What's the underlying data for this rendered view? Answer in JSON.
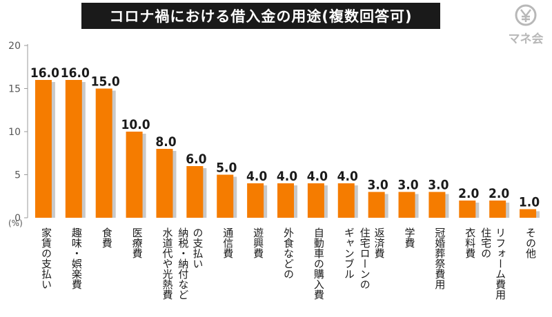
{
  "brand": {
    "name": "マネ会",
    "icon": "yen-coin-icon"
  },
  "colors": {
    "bar": "#f57c00",
    "shadow": "#c9c9c9",
    "axis": "#999999",
    "text": "#1a1a1a"
  },
  "chart_data": {
    "type": "bar",
    "title": "コロナ禍における借入金の用途(複数回答可)",
    "unit_label": "(%)",
    "ylim": [
      0,
      20
    ],
    "yticks": [
      0,
      5,
      10,
      15,
      20
    ],
    "grid": false,
    "categories": [
      "家賃の支払い",
      "趣味・娯楽費",
      "食費",
      "医療費",
      "水道代や光熱費",
      "納税・納付などの支払い",
      "通信費",
      "遊興費",
      "外食などの",
      "自動車の購入費",
      "ギャンブル",
      "住宅ローンの返済費",
      "学費",
      "冠婚葬祭費用",
      "衣料費",
      "住宅のリフォーム費用",
      "その他"
    ],
    "category_lines": [
      [
        "家賃の支払い"
      ],
      [
        "趣味・娯楽費"
      ],
      [
        "食費"
      ],
      [
        "医療費"
      ],
      [
        "水道代や光熱費"
      ],
      [
        "の支払い",
        "納税・納付など"
      ],
      [
        "通信費"
      ],
      [
        "遊興費"
      ],
      [
        "外食などの"
      ],
      [
        "自動車の購入費"
      ],
      [
        "ギャンブル"
      ],
      [
        "返済費",
        "住宅ローンの"
      ],
      [
        "学費"
      ],
      [
        "冠婚葬祭費用"
      ],
      [
        "衣料費"
      ],
      [
        "リフォーム費用",
        "住宅の"
      ],
      [
        "その他"
      ]
    ],
    "values": [
      16.0,
      16.0,
      15.0,
      10.0,
      8.0,
      6.0,
      5.0,
      4.0,
      4.0,
      4.0,
      4.0,
      3.0,
      3.0,
      3.0,
      2.0,
      2.0,
      1.0
    ],
    "value_labels": [
      "16.0",
      "16.0",
      "15.0",
      "10.0",
      "8.0",
      "6.0",
      "5.0",
      "4.0",
      "4.0",
      "4.0",
      "4.0",
      "3.0",
      "3.0",
      "3.0",
      "2.0",
      "2.0",
      "1.0"
    ]
  }
}
